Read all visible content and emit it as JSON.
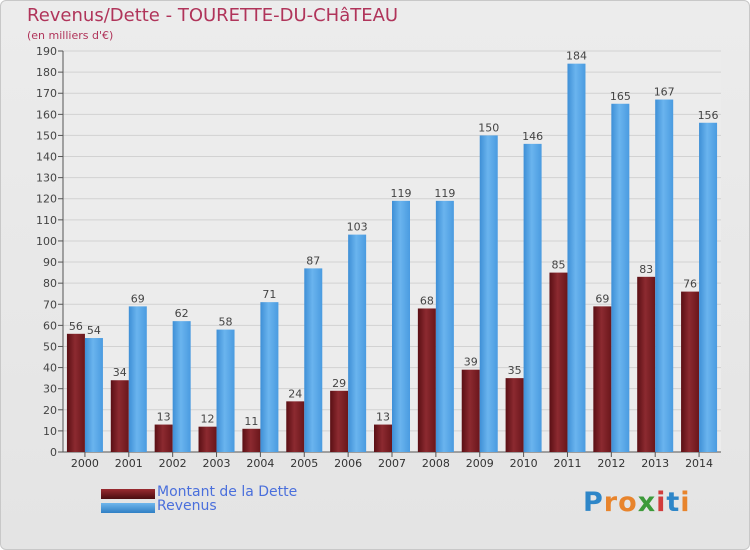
{
  "title": "Revenus/Dette - TOURETTE-DU-CHâTEAU",
  "subtitle": "(en milliers d'€)",
  "colors": {
    "dette": "#7a1e24",
    "revenus": "#4d9fe0",
    "title": "#b0345a",
    "legend_text": "#4a6fdc"
  },
  "logo": {
    "text": "Proxiti",
    "letters": [
      {
        "ch": "P",
        "color": "#2e86c8"
      },
      {
        "ch": "r",
        "color": "#e8842c"
      },
      {
        "ch": "o",
        "color": "#e8842c"
      },
      {
        "ch": "x",
        "color": "#3d9a3a"
      },
      {
        "ch": "i",
        "color": "#d23c3c"
      },
      {
        "ch": "t",
        "color": "#2e86c8"
      },
      {
        "ch": "i",
        "color": "#e8842c"
      }
    ]
  },
  "chart_data": {
    "type": "bar",
    "categories": [
      "2000",
      "2001",
      "2002",
      "2003",
      "2004",
      "2005",
      "2006",
      "2007",
      "2008",
      "2009",
      "2010",
      "2011",
      "2012",
      "2013",
      "2014"
    ],
    "series": [
      {
        "name": "Montant de la Dette",
        "values": [
          56,
          34,
          13,
          12,
          11,
          24,
          29,
          13,
          68,
          39,
          35,
          85,
          69,
          83,
          76
        ]
      },
      {
        "name": "Revenus",
        "values": [
          54,
          69,
          62,
          58,
          71,
          87,
          103,
          119,
          119,
          150,
          146,
          184,
          165,
          167,
          156
        ]
      }
    ],
    "ylim": [
      0,
      190
    ],
    "yticks": [
      0,
      10,
      20,
      30,
      40,
      50,
      60,
      70,
      80,
      90,
      100,
      110,
      120,
      130,
      140,
      150,
      160,
      170,
      180,
      190
    ],
    "grid": true,
    "legend_position": "bottom-left"
  }
}
